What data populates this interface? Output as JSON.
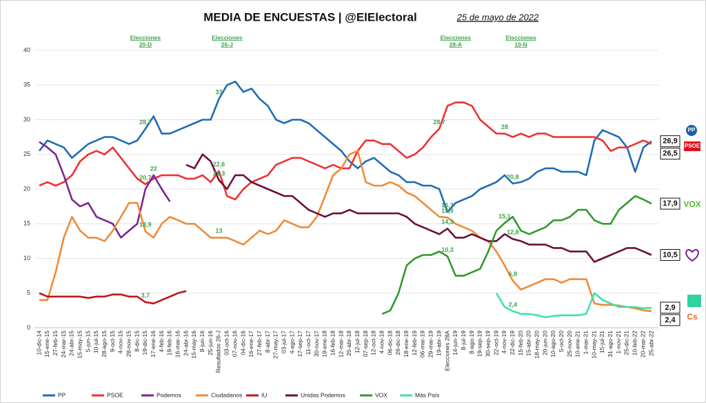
{
  "chart_data": {
    "type": "line",
    "title": "MEDIA DE ENCUESTAS | @ElElectoral",
    "subtitle": "25 de mayo de 2022",
    "categories": [
      "10-dic-14",
      "15-ene-15",
      "27-feb-15",
      "24-mar-15",
      "24-abr-15",
      "15-may-15",
      "5-jun-15",
      "10-jul-15",
      "28-ago-15",
      "9-oct-15",
      "4-nov-15",
      "28-nov-15",
      "8-dic-15",
      "19-dic-15",
      "17-ene-16",
      "4-feb-16",
      "19-feb-16",
      "16-mar-16",
      "24-abr-16",
      "15-may-16",
      "8-jun-16",
      "25-jun-16",
      "Resultados 26-J",
      "03-oct-16",
      "07-nov-16",
      "04-dic-16",
      "16-ene-17",
      "27-feb-17",
      "8-abr-17",
      "27-may-17",
      "03-jul-17",
      "4-ago-17",
      "17-sep-17",
      "11-oct-17",
      "30-nov-17",
      "19-ene-18",
      "16-feb-18",
      "12-mar-18",
      "25-abr-18",
      "12-jul-18",
      "07-sep-18",
      "12-oct-18",
      "4-nov-18",
      "06-dic-18",
      "26-dic-18",
      "18-ene-19",
      "12-feb-19",
      "06-mar-19",
      "29-mar-19",
      "19-abr-19",
      "Elecciones 28A",
      "14-jun-19",
      "8-jul-19",
      "8-ago-19",
      "19-sep-19",
      "30-sep-19",
      "22-oct-19",
      "4-nov-19",
      "22-dic-19",
      "15-feb-20",
      "15-abr-20",
      "18-may-20",
      "20-jun-20",
      "10-ago-20",
      "5-oct-20",
      "25-nov-20",
      "10-ene-21",
      "1-mar-21",
      "10-may-21",
      "15-jul-21",
      "31-ago-21",
      "1-nov-21",
      "25-dic-21",
      "10-feb-22",
      "20-mar-22",
      "25-abr-22"
    ],
    "series": [
      {
        "name": "PP",
        "color": "#1f6bb5",
        "values": [
          25.5,
          27,
          26.5,
          26,
          24.5,
          25.5,
          26.5,
          27,
          27.5,
          27.5,
          27,
          26.5,
          27,
          28.7,
          30.5,
          28,
          28,
          28.5,
          29,
          29.5,
          30,
          30,
          33,
          35,
          35.5,
          34,
          34.5,
          33,
          32,
          30,
          29.5,
          30,
          30,
          29.5,
          28.5,
          27.5,
          26.5,
          25.5,
          24,
          23,
          24,
          24.5,
          23.5,
          22.5,
          22,
          21,
          21,
          20.5,
          20.5,
          20,
          16.7,
          18,
          18.5,
          19,
          20,
          20.5,
          21,
          22,
          20.8,
          21,
          21.5,
          22.5,
          23,
          23,
          22.5,
          22.5,
          22.5,
          22,
          27,
          28.5,
          28,
          27.5,
          26,
          22.5,
          26,
          26.9
        ],
        "value_labels": {
          "13": "28,7",
          "22": "33",
          "50": "16,7",
          "58": "20,8",
          "75": "26,9"
        }
      },
      {
        "name": "PSOE",
        "color": "#f03030",
        "values": [
          20.5,
          21,
          20.5,
          21,
          22,
          24,
          25,
          25.5,
          25,
          26,
          24.5,
          23,
          21.5,
          20.7,
          21.5,
          22,
          22,
          22,
          21.5,
          21.5,
          22,
          21,
          22.6,
          19,
          18.5,
          20,
          21,
          21.5,
          22,
          23.5,
          24,
          24.5,
          24.5,
          24,
          23.5,
          23,
          23.5,
          23,
          23,
          25.5,
          27,
          27,
          26.5,
          26.5,
          25.5,
          24.5,
          25,
          26,
          27.5,
          28.7,
          32,
          32.5,
          32.5,
          32,
          30,
          29,
          28,
          28,
          27.5,
          28,
          27.5,
          28,
          28,
          27.5,
          27.5,
          27.5,
          27.5,
          27.5,
          27.5,
          27,
          25.5,
          26,
          26,
          26.5,
          27,
          26.5
        ],
        "value_labels": {
          "13": "20,7",
          "22": "22,6",
          "49": "28,7",
          "57": "28",
          "75": "26,5"
        }
      },
      {
        "name": "Podemos",
        "color": "#7b2590",
        "values": [
          26.8,
          26,
          25,
          22,
          18.5,
          17.5,
          18,
          16,
          15.5,
          15,
          13,
          14,
          15,
          20,
          22,
          20,
          18.2,
          null,
          null,
          null,
          null,
          null,
          null,
          null,
          null,
          null,
          null,
          null,
          null,
          null,
          null,
          null,
          null,
          null,
          null,
          null,
          null,
          null,
          null,
          null,
          null,
          null,
          null,
          null,
          null,
          null,
          null,
          null,
          null,
          null,
          null,
          null,
          null,
          null,
          null,
          null,
          null,
          null,
          null,
          null,
          null,
          null,
          null,
          null,
          null,
          null,
          null,
          null,
          null,
          null,
          null,
          null,
          null,
          null,
          null,
          null
        ],
        "value_labels": {
          "14": "22"
        }
      },
      {
        "name": "Ciudadanos",
        "color": "#f08a36",
        "values": [
          4,
          4,
          8,
          13,
          16,
          14,
          13,
          13,
          12.5,
          14,
          16,
          18,
          18,
          13.9,
          13,
          15,
          16,
          15.5,
          15,
          15,
          14,
          13,
          13,
          13,
          12.5,
          12,
          13,
          14,
          13.5,
          14,
          15.5,
          15,
          14.5,
          14.5,
          16,
          19,
          22,
          23,
          25,
          25.5,
          21,
          20.5,
          20.5,
          21,
          20.5,
          19.5,
          19,
          18,
          17,
          16,
          15.9,
          15,
          14.5,
          14,
          13,
          12.5,
          11,
          9,
          6.8,
          5.5,
          6,
          6.5,
          7,
          7,
          6.5,
          7,
          7,
          7,
          3.5,
          3.3,
          3.3,
          3.2,
          3,
          2.8,
          2.5,
          2.4
        ],
        "value_labels": {
          "13": "13,9",
          "22": "13",
          "50": "15,9",
          "58": "6,8",
          "75": "2,4"
        }
      },
      {
        "name": "IU",
        "color": "#c0141b",
        "values": [
          5,
          4.5,
          4.5,
          4.5,
          4.5,
          4.5,
          4.3,
          4.5,
          4.5,
          4.8,
          4.8,
          4.5,
          4.5,
          3.7,
          3.5,
          4,
          4.5,
          5,
          5.3,
          null,
          null,
          null,
          null,
          null,
          null,
          null,
          null,
          null,
          null,
          null,
          null,
          null,
          null,
          null,
          null,
          null,
          null,
          null,
          null,
          null,
          null,
          null,
          null,
          null,
          null,
          null,
          null,
          null,
          null,
          null,
          null,
          null,
          null,
          null,
          null,
          null,
          null,
          null,
          null,
          null,
          null,
          null,
          null,
          null,
          null,
          null,
          null,
          null,
          null,
          null,
          null,
          null,
          null,
          null,
          null,
          null
        ],
        "value_labels": {
          "13": "3,7"
        }
      },
      {
        "name": "Unidas Podemos",
        "color": "#6a0f3a",
        "values": [
          null,
          null,
          null,
          null,
          null,
          null,
          null,
          null,
          null,
          null,
          null,
          null,
          null,
          null,
          null,
          null,
          null,
          null,
          23.5,
          23,
          25,
          24,
          21.3,
          20,
          22,
          22,
          21,
          20.5,
          20,
          19.5,
          19,
          19,
          18,
          17,
          16.5,
          16,
          16.5,
          16.5,
          17,
          16.5,
          16.5,
          16.5,
          16.5,
          16.5,
          16.5,
          16,
          15,
          14.5,
          14,
          13.5,
          14.3,
          13,
          13,
          13.5,
          13,
          12.5,
          12.5,
          13.5,
          12.8,
          12.5,
          12,
          12,
          12,
          11.5,
          11.5,
          11,
          11,
          11,
          9.5,
          10,
          10.5,
          11,
          11.5,
          11.5,
          11,
          10.5
        ],
        "value_labels": {
          "22": "21,3",
          "50": "14,3",
          "58": "12,8",
          "75": "10,5"
        }
      },
      {
        "name": "VOX",
        "color": "#2f9a2a",
        "values": [
          null,
          null,
          null,
          null,
          null,
          null,
          null,
          null,
          null,
          null,
          null,
          null,
          null,
          null,
          null,
          null,
          null,
          null,
          null,
          null,
          null,
          null,
          null,
          null,
          null,
          null,
          null,
          null,
          null,
          null,
          null,
          null,
          null,
          null,
          null,
          null,
          null,
          null,
          null,
          null,
          null,
          null,
          2,
          2.5,
          5,
          9,
          10,
          10.5,
          10.5,
          11,
          10.3,
          7.5,
          7.5,
          8,
          8.5,
          11,
          14,
          15.1,
          16,
          14,
          13.5,
          14,
          14.5,
          15.5,
          15.5,
          16,
          17,
          17,
          15.5,
          15,
          15,
          17,
          18,
          19,
          18.5,
          17.9
        ],
        "value_labels": {
          "50": "10,3",
          "57": "15,1",
          "75": "17,9"
        }
      },
      {
        "name": "Más País",
        "color": "#3fe0a8",
        "values": [
          null,
          null,
          null,
          null,
          null,
          null,
          null,
          null,
          null,
          null,
          null,
          null,
          null,
          null,
          null,
          null,
          null,
          null,
          null,
          null,
          null,
          null,
          null,
          null,
          null,
          null,
          null,
          null,
          null,
          null,
          null,
          null,
          null,
          null,
          null,
          null,
          null,
          null,
          null,
          null,
          null,
          null,
          null,
          null,
          null,
          null,
          null,
          null,
          null,
          null,
          null,
          null,
          null,
          null,
          null,
          null,
          5,
          3,
          2.4,
          2,
          2,
          1.8,
          1.5,
          1.7,
          1.8,
          1.8,
          1.8,
          2,
          5,
          4,
          3.5,
          3,
          3,
          3,
          2.8,
          2.9
        ],
        "value_labels": {
          "58": "2,4",
          "75": "2,9"
        }
      }
    ],
    "events": [
      {
        "index": 13,
        "label": "Elecciones",
        "date": "20-D"
      },
      {
        "index": 23,
        "label": "Elecciones",
        "date": "26-J"
      },
      {
        "index": 51,
        "label": "Elecciones",
        "date": "28-A"
      },
      {
        "index": 59,
        "label": "Elecciones",
        "date": "10-N"
      }
    ],
    "logos": [
      "PP",
      "PSOE",
      "VOX",
      "Cs"
    ],
    "ylim": [
      0,
      40
    ],
    "yticks": [
      0,
      5,
      10,
      15,
      20,
      25,
      30,
      35,
      40
    ],
    "grid": true,
    "legend": "bottom"
  }
}
